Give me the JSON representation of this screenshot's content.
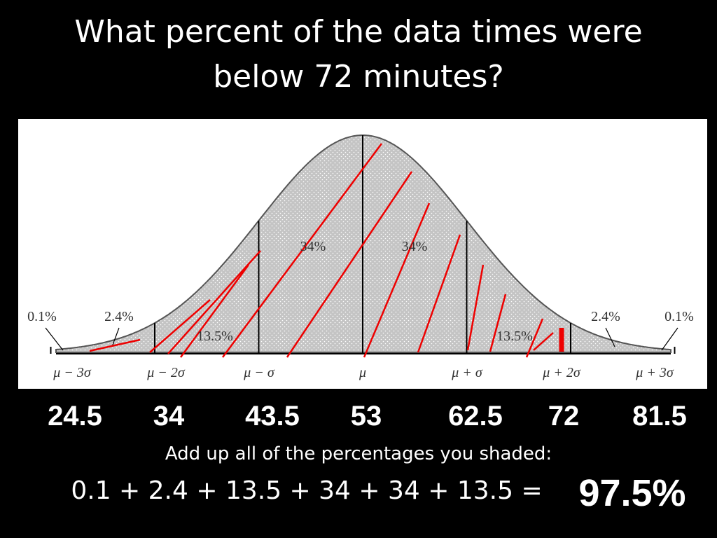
{
  "title": "What percent of the data times were below 72 minutes?",
  "diagram": {
    "region_labels": [
      "0.1%",
      "2.4%",
      "13.5%",
      "34%",
      "34%",
      "13.5%",
      "2.4%",
      "0.1%"
    ],
    "axis_labels": [
      "μ − 3σ",
      "μ − 2σ",
      "μ − σ",
      "μ",
      "μ + σ",
      "μ + 2σ",
      "μ + 3σ"
    ]
  },
  "values": [
    "24.5",
    "34",
    "43.5",
    "53",
    "62.5",
    "72",
    "81.5"
  ],
  "instruction": "Add up all of the percentages you shaded:",
  "equation": "0.1 + 2.4 + 13.5 + 34 + 34 + 13.5 =",
  "answer": "97.5%"
}
